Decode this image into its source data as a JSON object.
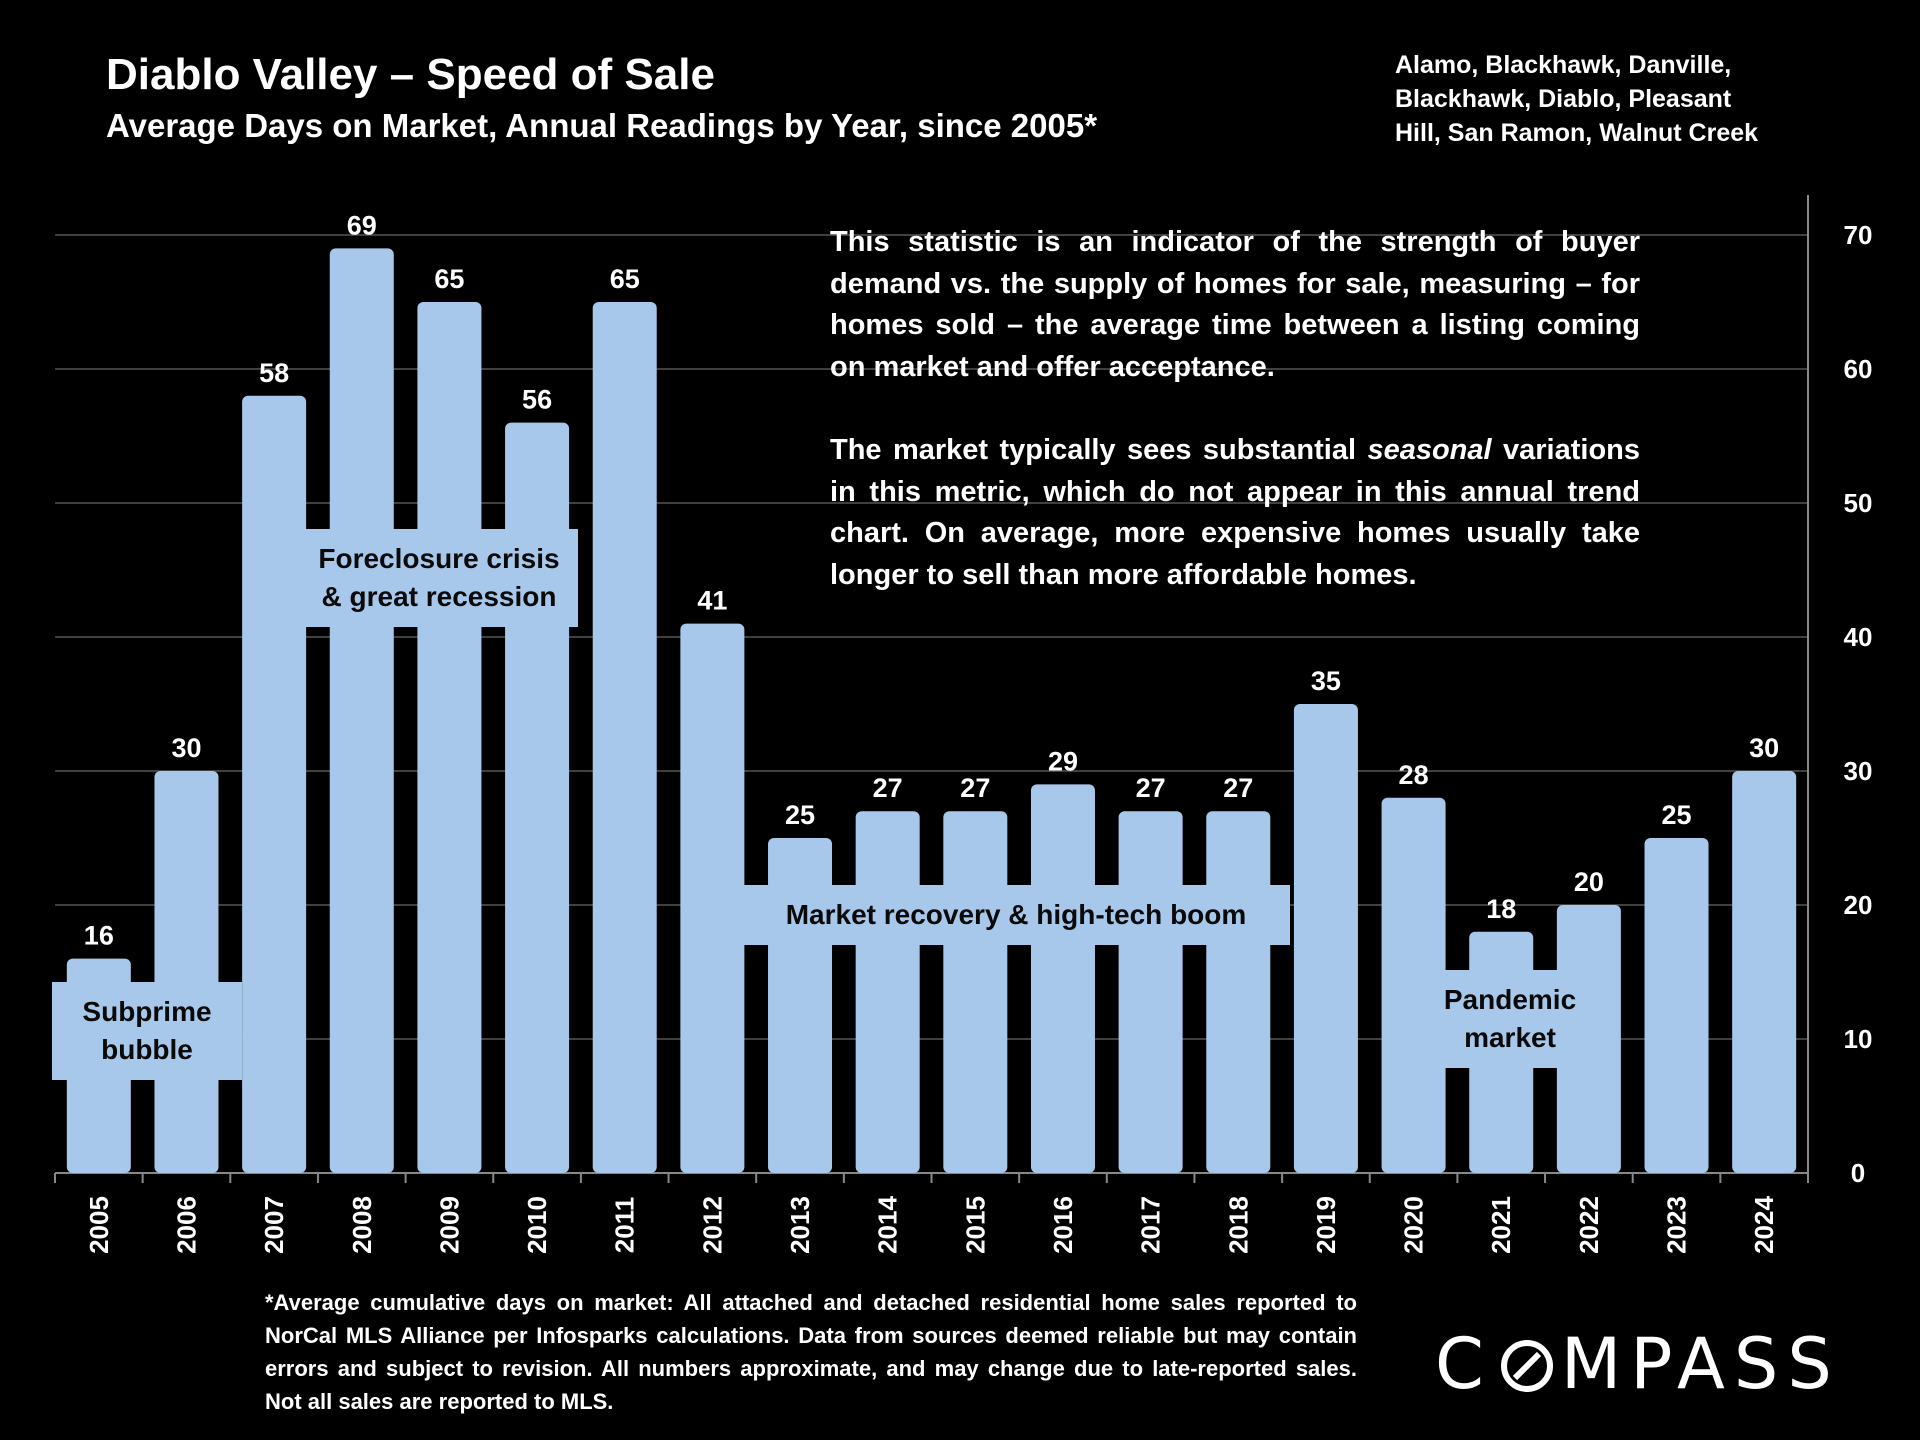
{
  "header": {
    "title": "Diablo Valley – Speed of Sale",
    "subtitle": "Average Days on Market, Annual Readings by Year, since 2005*",
    "cities_line1": "Alamo, Blackhawk, Danville,",
    "cities_line2": "Blackhawk, Diablo, Pleasant",
    "cities_line3": "Hill, San Ramon, Walnut Creek"
  },
  "info": {
    "paragraph1": "This statistic is an indicator of the strength of buyer demand vs. the supply of homes for sale, measuring – for homes sold – the average time between a listing coming on market and offer acceptance.",
    "paragraph2_before": "The market typically sees substantial ",
    "paragraph2_em": "seasonal",
    "paragraph2_after": " variations in this metric, which do not appear in this annual trend chart. On average, more expensive homes usually take longer to sell than more affordable homes."
  },
  "annotations": {
    "subprime_line1": "Subprime",
    "subprime_line2": "bubble",
    "foreclosure_line1": "Foreclosure crisis",
    "foreclosure_line2": "& great recession",
    "recovery": "Market recovery & high-tech boom",
    "pandemic_line1": "Pandemic",
    "pandemic_line2": "market"
  },
  "footnote": "*Average cumulative days on market: All attached and detached residential home sales reported to NorCal MLS Alliance per Infosparks calculations. Data from sources deemed reliable but may contain errors and subject to revision. All numbers approximate, and may change due to late-reported sales. Not all sales are reported to MLS.",
  "logo_text": "COMPASS",
  "colors": {
    "bar": "#a7c8ea",
    "background": "#000000",
    "text": "#ffffff",
    "grid": "#555555"
  },
  "chart_data": {
    "type": "bar",
    "categories": [
      "2005",
      "2006",
      "2007",
      "2008",
      "2009",
      "2010",
      "2011",
      "2012",
      "2013",
      "2014",
      "2015",
      "2016",
      "2017",
      "2018",
      "2019",
      "2020",
      "2021",
      "2022",
      "2023",
      "2024"
    ],
    "values": [
      16,
      30,
      58,
      69,
      65,
      56,
      65,
      41,
      25,
      27,
      27,
      29,
      27,
      27,
      35,
      28,
      18,
      20,
      25,
      30
    ],
    "yticks": [
      0,
      10,
      20,
      30,
      40,
      50,
      60,
      70
    ],
    "ylim": [
      0,
      73
    ],
    "y_axis_side": "right",
    "grid": true,
    "data_labels": true
  }
}
